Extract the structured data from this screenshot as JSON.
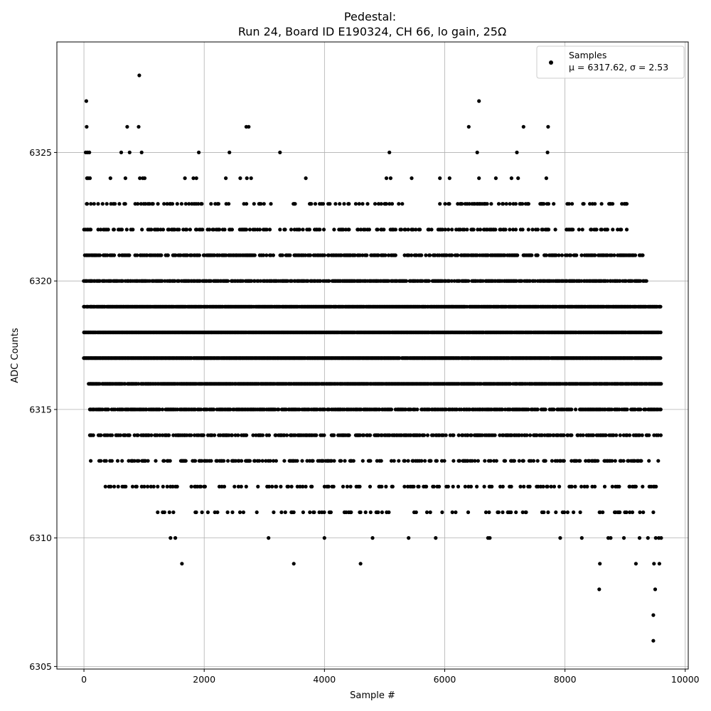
{
  "chart_data": {
    "type": "scatter",
    "title_line1": "Pedestal:",
    "title_line2": "Run 24, Board ID E190324, CH 66, lo gain, 25Ω",
    "xlabel": "Sample #",
    "ylabel": "ADC Counts",
    "xlim": [
      -450,
      10050
    ],
    "ylim": [
      6304.9,
      6329.3
    ],
    "xticks": [
      0,
      2000,
      4000,
      6000,
      8000,
      10000
    ],
    "yticks": [
      6305,
      6310,
      6315,
      6320,
      6325
    ],
    "grid": true,
    "legend_position": "top-right",
    "legend": {
      "label_line1": "Samples",
      "label_line2": "μ = 6317.62, σ = 2.53"
    },
    "series": [
      {
        "name": "Samples",
        "color": "#000000",
        "n_samples": 9600,
        "mean": 6317.62,
        "std": 2.53,
        "bands": [
          {
            "y": 6317,
            "x_ranges": [
              [
                0,
                9600
              ]
            ]
          },
          {
            "y": 6318,
            "x_ranges": [
              [
                0,
                9600
              ]
            ]
          },
          {
            "y": 6319,
            "x_ranges": [
              [
                0,
                9600
              ]
            ]
          },
          {
            "y": 6316,
            "x_ranges": [
              [
                80,
                9600
              ]
            ]
          },
          {
            "y": 6320,
            "x_ranges": [
              [
                0,
                9360
              ]
            ]
          },
          {
            "y": 6321,
            "x_ranges": [
              [
                0,
                9300
              ]
            ]
          },
          {
            "y": 6315,
            "x_ranges": [
              [
                100,
                9600
              ]
            ]
          },
          {
            "y": 6314,
            "x_ranges": [
              [
                100,
                9600
              ]
            ]
          },
          {
            "y": 6322,
            "x_ranges": [
              [
                0,
                9060
              ]
            ]
          },
          {
            "y": 6313,
            "x_ranges": [
              [
                100,
                9600
              ]
            ]
          },
          {
            "y": 6312,
            "x_ranges": [
              [
                220,
                9600
              ]
            ]
          },
          {
            "y": 6323,
            "x_ranges": [
              [
                0,
                9180
              ]
            ]
          },
          {
            "y": 6311,
            "x_ranges": [
              [
                1140,
                9600
              ]
            ]
          }
        ],
        "points": [
          {
            "x": 40,
            "y": 6327
          },
          {
            "x": 45,
            "y": 6326
          },
          {
            "x": 30,
            "y": 6325
          },
          {
            "x": 60,
            "y": 6325
          },
          {
            "x": 90,
            "y": 6325
          },
          {
            "x": 50,
            "y": 6324
          },
          {
            "x": 70,
            "y": 6324
          },
          {
            "x": 100,
            "y": 6324
          },
          {
            "x": 440,
            "y": 6324
          },
          {
            "x": 620,
            "y": 6325
          },
          {
            "x": 690,
            "y": 6324
          },
          {
            "x": 720,
            "y": 6326
          },
          {
            "x": 760,
            "y": 6325
          },
          {
            "x": 920,
            "y": 6328
          },
          {
            "x": 910,
            "y": 6326
          },
          {
            "x": 930,
            "y": 6324
          },
          {
            "x": 960,
            "y": 6325
          },
          {
            "x": 980,
            "y": 6324
          },
          {
            "x": 1010,
            "y": 6324
          },
          {
            "x": 1680,
            "y": 6324
          },
          {
            "x": 1820,
            "y": 6324
          },
          {
            "x": 1870,
            "y": 6324
          },
          {
            "x": 1910,
            "y": 6325
          },
          {
            "x": 2360,
            "y": 6324
          },
          {
            "x": 2420,
            "y": 6325
          },
          {
            "x": 2600,
            "y": 6324
          },
          {
            "x": 2700,
            "y": 6326
          },
          {
            "x": 2740,
            "y": 6326
          },
          {
            "x": 2710,
            "y": 6324
          },
          {
            "x": 2780,
            "y": 6324
          },
          {
            "x": 3260,
            "y": 6325
          },
          {
            "x": 3690,
            "y": 6324
          },
          {
            "x": 5030,
            "y": 6324
          },
          {
            "x": 5080,
            "y": 6325
          },
          {
            "x": 5100,
            "y": 6324
          },
          {
            "x": 5450,
            "y": 6324
          },
          {
            "x": 5920,
            "y": 6324
          },
          {
            "x": 6080,
            "y": 6324
          },
          {
            "x": 6400,
            "y": 6326
          },
          {
            "x": 6540,
            "y": 6325
          },
          {
            "x": 6570,
            "y": 6327
          },
          {
            "x": 6570,
            "y": 6324
          },
          {
            "x": 6850,
            "y": 6324
          },
          {
            "x": 7110,
            "y": 6324
          },
          {
            "x": 7200,
            "y": 6325
          },
          {
            "x": 7220,
            "y": 6324
          },
          {
            "x": 7310,
            "y": 6326
          },
          {
            "x": 7690,
            "y": 6324
          },
          {
            "x": 7710,
            "y": 6325
          },
          {
            "x": 7720,
            "y": 6326
          },
          {
            "x": 1440,
            "y": 6310
          },
          {
            "x": 1520,
            "y": 6310
          },
          {
            "x": 1630,
            "y": 6309
          },
          {
            "x": 3070,
            "y": 6310
          },
          {
            "x": 3490,
            "y": 6309
          },
          {
            "x": 4000,
            "y": 6310
          },
          {
            "x": 4600,
            "y": 6309
          },
          {
            "x": 4800,
            "y": 6310
          },
          {
            "x": 5400,
            "y": 6310
          },
          {
            "x": 5850,
            "y": 6310
          },
          {
            "x": 6720,
            "y": 6310
          },
          {
            "x": 6750,
            "y": 6310
          },
          {
            "x": 7920,
            "y": 6310
          },
          {
            "x": 8280,
            "y": 6310
          },
          {
            "x": 8580,
            "y": 6309
          },
          {
            "x": 8570,
            "y": 6308
          },
          {
            "x": 8720,
            "y": 6310
          },
          {
            "x": 8760,
            "y": 6310
          },
          {
            "x": 8980,
            "y": 6310
          },
          {
            "x": 9180,
            "y": 6309
          },
          {
            "x": 9240,
            "y": 6310
          },
          {
            "x": 9380,
            "y": 6310
          },
          {
            "x": 9480,
            "y": 6309
          },
          {
            "x": 9500,
            "y": 6308
          },
          {
            "x": 9470,
            "y": 6307
          },
          {
            "x": 9470,
            "y": 6306
          },
          {
            "x": 9510,
            "y": 6310
          },
          {
            "x": 9560,
            "y": 6310
          },
          {
            "x": 9570,
            "y": 6309
          },
          {
            "x": 9600,
            "y": 6310
          }
        ]
      }
    ]
  }
}
